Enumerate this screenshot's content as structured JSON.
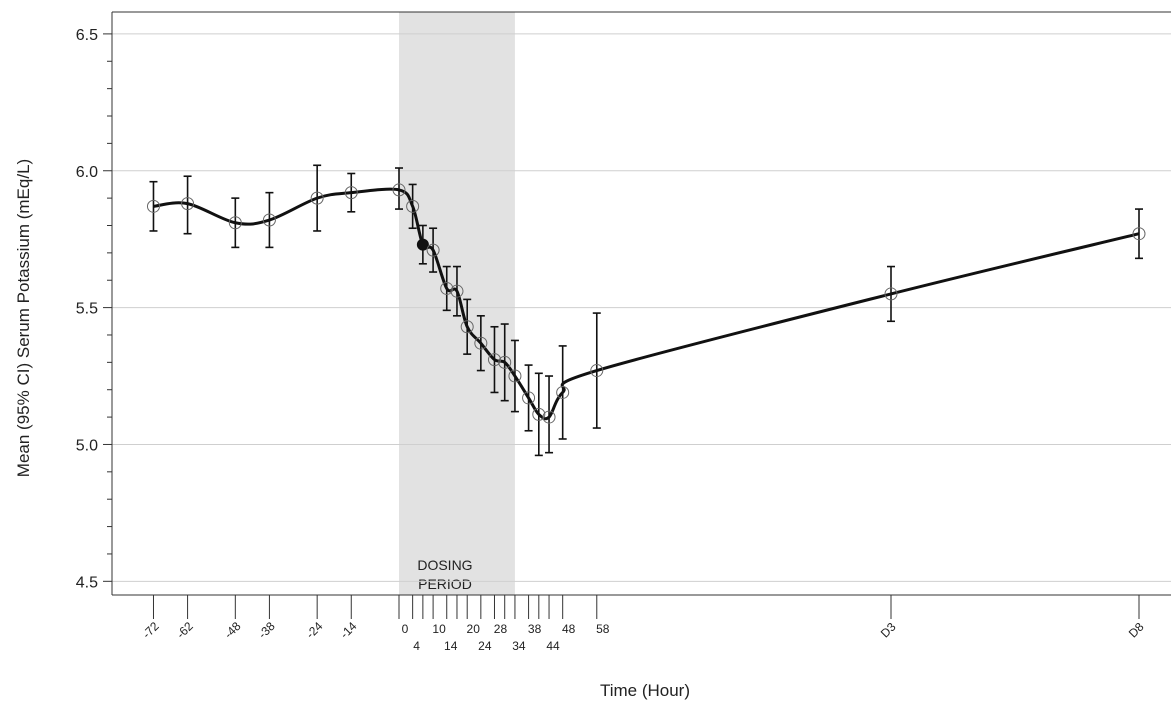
{
  "chart_data": {
    "type": "line",
    "xlabel": "Time (Hour)",
    "ylabel": "Mean (95% CI) Serum Potassium (mEq/L)",
    "ylim": [
      4.45,
      6.58
    ],
    "yticks": [
      "4.5",
      "5.0",
      "5.5",
      "6.0",
      "6.5"
    ],
    "grid": "horizontal",
    "shaded_region": {
      "x_start": 0,
      "x_end": 34,
      "label": "DOSING PERIOD",
      "color": "#e2e2e2"
    },
    "xticks_top": [
      "-72",
      "-62",
      "-48",
      "-38",
      "-24",
      "-14",
      "0",
      "10",
      "20",
      "28",
      "38",
      "48",
      "58",
      "D3",
      "D8"
    ],
    "xticks_bottom": [
      "4",
      "14",
      "24",
      "34",
      "44"
    ],
    "series": [
      {
        "points": [
          {
            "x": -72,
            "y": 5.87,
            "lo": 5.78,
            "hi": 5.96
          },
          {
            "x": -62,
            "y": 5.88,
            "lo": 5.77,
            "hi": 5.98
          },
          {
            "x": -48,
            "y": 5.81,
            "lo": 5.72,
            "hi": 5.9
          },
          {
            "x": -38,
            "y": 5.82,
            "lo": 5.72,
            "hi": 5.92
          },
          {
            "x": -24,
            "y": 5.9,
            "lo": 5.78,
            "hi": 6.02
          },
          {
            "x": -14,
            "y": 5.92,
            "lo": 5.85,
            "hi": 5.99
          },
          {
            "x": 0,
            "y": 5.93,
            "lo": 5.86,
            "hi": 6.01
          },
          {
            "x": 4,
            "y": 5.87,
            "lo": 5.79,
            "hi": 5.95
          },
          {
            "x": 7,
            "y": 5.73,
            "lo": 5.66,
            "hi": 5.8,
            "filled": true
          },
          {
            "x": 10,
            "y": 5.71,
            "lo": 5.63,
            "hi": 5.79
          },
          {
            "x": 14,
            "y": 5.57,
            "lo": 5.49,
            "hi": 5.65
          },
          {
            "x": 17,
            "y": 5.56,
            "lo": 5.47,
            "hi": 5.65
          },
          {
            "x": 20,
            "y": 5.43,
            "lo": 5.33,
            "hi": 5.53
          },
          {
            "x": 24,
            "y": 5.37,
            "lo": 5.27,
            "hi": 5.47
          },
          {
            "x": 28,
            "y": 5.31,
            "lo": 5.19,
            "hi": 5.43
          },
          {
            "x": 31,
            "y": 5.3,
            "lo": 5.16,
            "hi": 5.44
          },
          {
            "x": 34,
            "y": 5.25,
            "lo": 5.12,
            "hi": 5.38
          },
          {
            "x": 38,
            "y": 5.17,
            "lo": 5.05,
            "hi": 5.29
          },
          {
            "x": 41,
            "y": 5.11,
            "lo": 4.96,
            "hi": 5.26
          },
          {
            "x": 44,
            "y": 5.1,
            "lo": 4.97,
            "hi": 5.25
          },
          {
            "x": 48,
            "y": 5.19,
            "lo": 5.02,
            "hi": 5.36
          },
          {
            "x": 58,
            "y": 5.27,
            "lo": 5.06,
            "hi": 5.48
          },
          {
            "x": "D3",
            "y": 5.55,
            "lo": 5.45,
            "hi": 5.65
          },
          {
            "x": "D8",
            "y": 5.77,
            "lo": 5.68,
            "hi": 5.86
          }
        ]
      }
    ]
  }
}
